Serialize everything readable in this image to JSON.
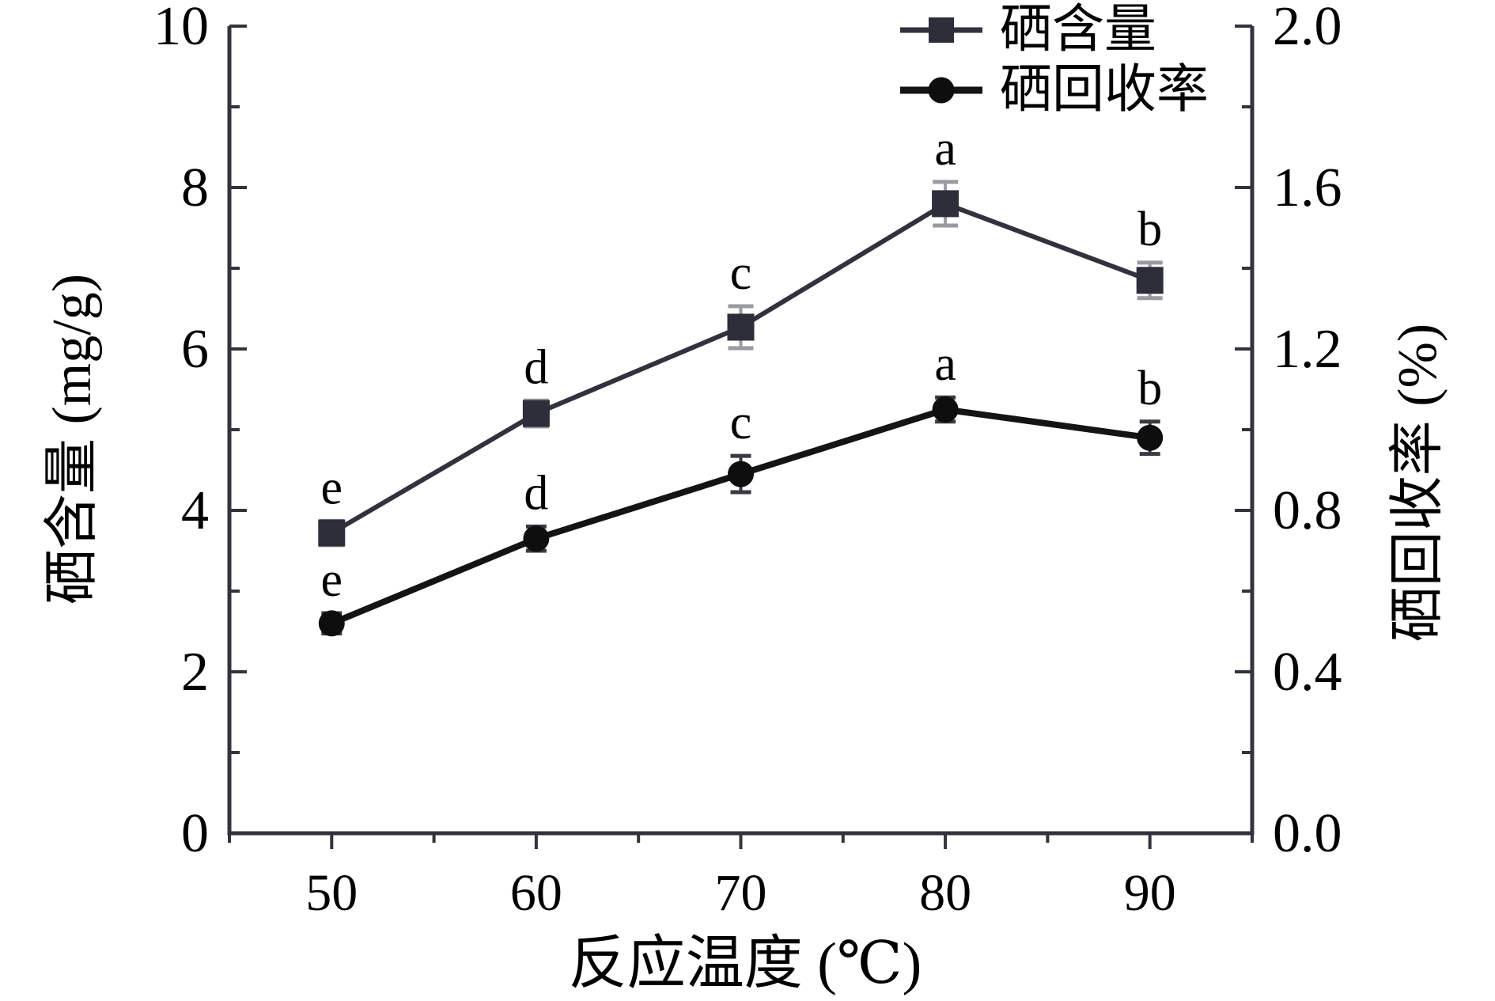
{
  "chart_data": {
    "type": "line",
    "title": "",
    "xlabel": "反应温度 (℃)",
    "ylabel_left": "硒含量 (mg/g)",
    "ylabel_right": "硒回收率 (%)",
    "x": [
      50,
      60,
      70,
      80,
      90
    ],
    "x_range": [
      45,
      95
    ],
    "x_major_ticks": [
      "50",
      "60",
      "70",
      "80",
      "90"
    ],
    "x_minor_step": 5,
    "y_left_range": [
      0,
      10
    ],
    "y_left_major_ticks": [
      "0",
      "2",
      "4",
      "6",
      "8",
      "10"
    ],
    "y_left_minor_step": 1,
    "y_right_range": [
      0.0,
      2.0
    ],
    "y_right_major_ticks": [
      "0.0",
      "0.4",
      "0.8",
      "1.2",
      "1.6",
      "2.0"
    ],
    "y_right_minor_step": 0.2,
    "grid": false,
    "legend_position": "top-right-inside",
    "axis_color": "#33333d",
    "series": [
      {
        "name": "硒含量",
        "axis": "left",
        "marker": "square",
        "line_color": "#32323f",
        "marker_color": "#2e2e3a",
        "error_color": "#9a9aa2",
        "values": [
          3.72,
          5.2,
          6.27,
          7.8,
          6.85
        ],
        "errors": [
          0.15,
          0.16,
          0.26,
          0.27,
          0.22
        ],
        "point_labels": [
          "e",
          "d",
          "c",
          "a",
          "b"
        ]
      },
      {
        "name": "硒回收率",
        "axis": "right",
        "marker": "circle",
        "line_color": "#141414",
        "marker_color": "#0e0e0e",
        "error_color": "#3a3a42",
        "values": [
          0.52,
          0.73,
          0.89,
          1.05,
          0.98
        ],
        "errors": [
          0.025,
          0.03,
          0.045,
          0.03,
          0.04
        ],
        "point_labels": [
          "e",
          "d",
          "c",
          "a",
          "b"
        ]
      }
    ]
  }
}
